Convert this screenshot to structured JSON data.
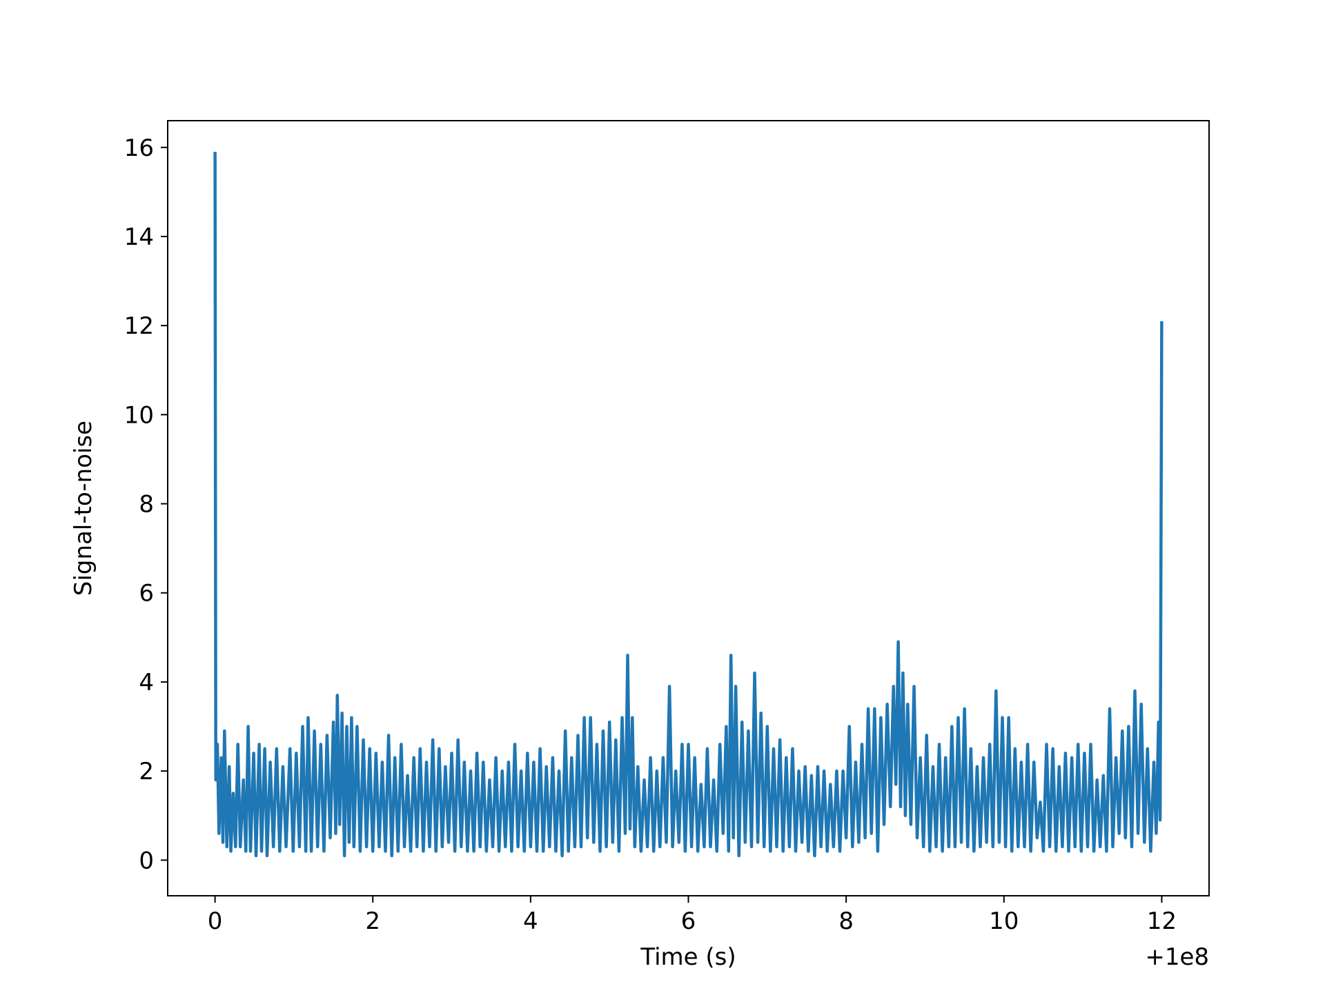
{
  "chart_data": {
    "type": "line",
    "title": "",
    "xlabel": "Time (s)",
    "ylabel": "Signal-to-noise",
    "x_offset_label": "+1e8",
    "xlim": [
      -0.6,
      12.6
    ],
    "ylim": [
      -0.8,
      16.6
    ],
    "x_ticks": [
      0,
      2,
      4,
      6,
      8,
      10,
      12
    ],
    "y_ticks": [
      0,
      2,
      4,
      6,
      8,
      10,
      12,
      14,
      16
    ],
    "x_tick_labels": [
      "0",
      "2",
      "4",
      "6",
      "8",
      "10",
      "12"
    ],
    "y_tick_labels": [
      "0",
      "2",
      "4",
      "6",
      "8",
      "10",
      "12",
      "14",
      "16"
    ],
    "grid": false,
    "legend": "none",
    "series": [
      {
        "color": "#1f77b4",
        "points": [
          [
            0.0,
            15.9
          ],
          [
            0.01,
            1.8
          ],
          [
            0.03,
            2.6
          ],
          [
            0.05,
            0.6
          ],
          [
            0.08,
            2.3
          ],
          [
            0.1,
            0.4
          ],
          [
            0.12,
            2.9
          ],
          [
            0.15,
            0.3
          ],
          [
            0.18,
            2.1
          ],
          [
            0.2,
            0.2
          ],
          [
            0.23,
            1.5
          ],
          [
            0.26,
            0.3
          ],
          [
            0.29,
            2.6
          ],
          [
            0.32,
            0.3
          ],
          [
            0.36,
            1.8
          ],
          [
            0.39,
            0.2
          ],
          [
            0.42,
            3.0
          ],
          [
            0.45,
            0.2
          ],
          [
            0.49,
            2.4
          ],
          [
            0.52,
            0.1
          ],
          [
            0.56,
            2.6
          ],
          [
            0.59,
            0.2
          ],
          [
            0.63,
            2.5
          ],
          [
            0.66,
            0.1
          ],
          [
            0.7,
            2.2
          ],
          [
            0.74,
            0.3
          ],
          [
            0.78,
            2.5
          ],
          [
            0.82,
            0.2
          ],
          [
            0.86,
            2.1
          ],
          [
            0.9,
            0.3
          ],
          [
            0.95,
            2.5
          ],
          [
            0.99,
            0.2
          ],
          [
            1.03,
            2.4
          ],
          [
            1.07,
            0.3
          ],
          [
            1.11,
            3.0
          ],
          [
            1.15,
            0.2
          ],
          [
            1.18,
            3.2
          ],
          [
            1.22,
            0.2
          ],
          [
            1.26,
            2.9
          ],
          [
            1.3,
            0.3
          ],
          [
            1.34,
            2.6
          ],
          [
            1.38,
            0.2
          ],
          [
            1.42,
            2.8
          ],
          [
            1.46,
            0.5
          ],
          [
            1.5,
            3.1
          ],
          [
            1.53,
            0.6
          ],
          [
            1.55,
            3.7
          ],
          [
            1.58,
            0.8
          ],
          [
            1.61,
            3.3
          ],
          [
            1.64,
            0.1
          ],
          [
            1.67,
            3.0
          ],
          [
            1.7,
            0.4
          ],
          [
            1.73,
            3.2
          ],
          [
            1.76,
            0.3
          ],
          [
            1.8,
            3.0
          ],
          [
            1.84,
            0.2
          ],
          [
            1.88,
            2.7
          ],
          [
            1.92,
            0.3
          ],
          [
            1.96,
            2.5
          ],
          [
            2.0,
            0.2
          ],
          [
            2.04,
            2.4
          ],
          [
            2.08,
            0.3
          ],
          [
            2.12,
            2.2
          ],
          [
            2.16,
            0.2
          ],
          [
            2.2,
            2.8
          ],
          [
            2.24,
            0.1
          ],
          [
            2.28,
            2.3
          ],
          [
            2.32,
            0.2
          ],
          [
            2.36,
            2.6
          ],
          [
            2.4,
            0.3
          ],
          [
            2.44,
            1.9
          ],
          [
            2.48,
            0.2
          ],
          [
            2.52,
            2.3
          ],
          [
            2.56,
            0.3
          ],
          [
            2.6,
            2.5
          ],
          [
            2.64,
            0.2
          ],
          [
            2.68,
            2.2
          ],
          [
            2.72,
            0.3
          ],
          [
            2.76,
            2.7
          ],
          [
            2.8,
            0.2
          ],
          [
            2.84,
            2.5
          ],
          [
            2.88,
            0.3
          ],
          [
            2.92,
            2.1
          ],
          [
            2.96,
            0.4
          ],
          [
            3.0,
            2.4
          ],
          [
            3.04,
            0.2
          ],
          [
            3.08,
            2.7
          ],
          [
            3.12,
            0.3
          ],
          [
            3.16,
            2.2
          ],
          [
            3.2,
            0.2
          ],
          [
            3.24,
            2.0
          ],
          [
            3.28,
            0.2
          ],
          [
            3.32,
            2.4
          ],
          [
            3.36,
            0.3
          ],
          [
            3.4,
            2.2
          ],
          [
            3.44,
            0.2
          ],
          [
            3.48,
            1.8
          ],
          [
            3.52,
            0.3
          ],
          [
            3.56,
            2.3
          ],
          [
            3.6,
            0.2
          ],
          [
            3.64,
            2.0
          ],
          [
            3.68,
            0.3
          ],
          [
            3.72,
            2.2
          ],
          [
            3.76,
            0.2
          ],
          [
            3.8,
            2.6
          ],
          [
            3.84,
            0.3
          ],
          [
            3.88,
            2.0
          ],
          [
            3.92,
            0.2
          ],
          [
            3.96,
            2.4
          ],
          [
            4.0,
            0.3
          ],
          [
            4.04,
            2.2
          ],
          [
            4.08,
            0.2
          ],
          [
            4.12,
            2.5
          ],
          [
            4.16,
            0.2
          ],
          [
            4.2,
            2.1
          ],
          [
            4.24,
            0.3
          ],
          [
            4.28,
            2.3
          ],
          [
            4.32,
            0.2
          ],
          [
            4.36,
            2.0
          ],
          [
            4.4,
            0.1
          ],
          [
            4.44,
            2.9
          ],
          [
            4.48,
            0.2
          ],
          [
            4.52,
            2.3
          ],
          [
            4.56,
            0.3
          ],
          [
            4.6,
            2.8
          ],
          [
            4.64,
            0.3
          ],
          [
            4.68,
            3.2
          ],
          [
            4.72,
            0.5
          ],
          [
            4.76,
            3.2
          ],
          [
            4.8,
            0.4
          ],
          [
            4.84,
            2.6
          ],
          [
            4.88,
            0.2
          ],
          [
            4.92,
            2.9
          ],
          [
            4.96,
            0.3
          ],
          [
            5.0,
            3.1
          ],
          [
            5.04,
            0.4
          ],
          [
            5.08,
            2.7
          ],
          [
            5.12,
            0.2
          ],
          [
            5.16,
            3.2
          ],
          [
            5.2,
            0.6
          ],
          [
            5.23,
            4.6
          ],
          [
            5.26,
            0.7
          ],
          [
            5.29,
            3.2
          ],
          [
            5.32,
            0.3
          ],
          [
            5.36,
            2.1
          ],
          [
            5.4,
            0.2
          ],
          [
            5.44,
            1.8
          ],
          [
            5.48,
            0.3
          ],
          [
            5.52,
            2.3
          ],
          [
            5.56,
            0.2
          ],
          [
            5.6,
            2.0
          ],
          [
            5.64,
            0.3
          ],
          [
            5.68,
            2.3
          ],
          [
            5.72,
            0.4
          ],
          [
            5.76,
            3.9
          ],
          [
            5.8,
            0.3
          ],
          [
            5.84,
            2.0
          ],
          [
            5.88,
            0.4
          ],
          [
            5.92,
            2.6
          ],
          [
            5.96,
            0.2
          ],
          [
            6.0,
            2.6
          ],
          [
            6.04,
            0.3
          ],
          [
            6.08,
            2.3
          ],
          [
            6.12,
            0.2
          ],
          [
            6.16,
            1.7
          ],
          [
            6.2,
            0.3
          ],
          [
            6.24,
            2.5
          ],
          [
            6.28,
            0.3
          ],
          [
            6.32,
            1.8
          ],
          [
            6.36,
            0.2
          ],
          [
            6.4,
            2.6
          ],
          [
            6.44,
            0.6
          ],
          [
            6.48,
            3.0
          ],
          [
            6.51,
            0.2
          ],
          [
            6.54,
            4.6
          ],
          [
            6.57,
            0.5
          ],
          [
            6.6,
            3.9
          ],
          [
            6.64,
            0.1
          ],
          [
            6.68,
            3.1
          ],
          [
            6.72,
            0.4
          ],
          [
            6.76,
            2.9
          ],
          [
            6.8,
            0.3
          ],
          [
            6.84,
            4.2
          ],
          [
            6.88,
            0.4
          ],
          [
            6.92,
            3.3
          ],
          [
            6.96,
            0.3
          ],
          [
            7.0,
            3.0
          ],
          [
            7.04,
            0.2
          ],
          [
            7.08,
            2.5
          ],
          [
            7.12,
            0.3
          ],
          [
            7.16,
            2.7
          ],
          [
            7.2,
            0.2
          ],
          [
            7.24,
            2.3
          ],
          [
            7.28,
            0.3
          ],
          [
            7.32,
            2.5
          ],
          [
            7.36,
            0.2
          ],
          [
            7.4,
            2.0
          ],
          [
            7.44,
            0.4
          ],
          [
            7.48,
            2.1
          ],
          [
            7.52,
            0.2
          ],
          [
            7.56,
            1.9
          ],
          [
            7.6,
            0.1
          ],
          [
            7.64,
            2.1
          ],
          [
            7.68,
            0.3
          ],
          [
            7.72,
            2.0
          ],
          [
            7.76,
            0.2
          ],
          [
            7.8,
            1.7
          ],
          [
            7.84,
            0.3
          ],
          [
            7.88,
            2.0
          ],
          [
            7.92,
            0.2
          ],
          [
            7.96,
            2.0
          ],
          [
            8.0,
            0.5
          ],
          [
            8.04,
            3.0
          ],
          [
            8.08,
            0.3
          ],
          [
            8.12,
            2.2
          ],
          [
            8.16,
            0.4
          ],
          [
            8.2,
            2.6
          ],
          [
            8.24,
            0.5
          ],
          [
            8.28,
            3.4
          ],
          [
            8.32,
            0.6
          ],
          [
            8.36,
            3.4
          ],
          [
            8.4,
            0.2
          ],
          [
            8.44,
            3.2
          ],
          [
            8.48,
            0.8
          ],
          [
            8.52,
            3.5
          ],
          [
            8.56,
            1.2
          ],
          [
            8.6,
            3.9
          ],
          [
            8.63,
            1.7
          ],
          [
            8.66,
            4.9
          ],
          [
            8.69,
            1.2
          ],
          [
            8.72,
            4.2
          ],
          [
            8.75,
            1.0
          ],
          [
            8.78,
            3.5
          ],
          [
            8.82,
            0.8
          ],
          [
            8.86,
            3.9
          ],
          [
            8.9,
            0.5
          ],
          [
            8.94,
            2.3
          ],
          [
            8.98,
            0.3
          ],
          [
            9.02,
            2.8
          ],
          [
            9.06,
            0.2
          ],
          [
            9.1,
            2.1
          ],
          [
            9.14,
            0.3
          ],
          [
            9.18,
            2.6
          ],
          [
            9.22,
            0.2
          ],
          [
            9.26,
            2.3
          ],
          [
            9.3,
            0.3
          ],
          [
            9.34,
            3.0
          ],
          [
            9.38,
            0.3
          ],
          [
            9.42,
            3.2
          ],
          [
            9.46,
            0.4
          ],
          [
            9.5,
            3.4
          ],
          [
            9.54,
            0.3
          ],
          [
            9.58,
            2.5
          ],
          [
            9.62,
            0.2
          ],
          [
            9.66,
            2.1
          ],
          [
            9.7,
            0.3
          ],
          [
            9.74,
            2.3
          ],
          [
            9.78,
            0.4
          ],
          [
            9.82,
            2.6
          ],
          [
            9.86,
            0.3
          ],
          [
            9.9,
            3.8
          ],
          [
            9.94,
            0.4
          ],
          [
            9.98,
            3.2
          ],
          [
            10.02,
            0.3
          ],
          [
            10.06,
            3.2
          ],
          [
            10.1,
            0.2
          ],
          [
            10.14,
            2.5
          ],
          [
            10.18,
            0.3
          ],
          [
            10.22,
            2.2
          ],
          [
            10.26,
            0.3
          ],
          [
            10.3,
            2.6
          ],
          [
            10.34,
            0.2
          ],
          [
            10.38,
            2.2
          ],
          [
            10.42,
            0.5
          ],
          [
            10.46,
            1.3
          ],
          [
            10.5,
            0.2
          ],
          [
            10.54,
            2.6
          ],
          [
            10.58,
            0.3
          ],
          [
            10.62,
            2.5
          ],
          [
            10.66,
            0.2
          ],
          [
            10.7,
            2.1
          ],
          [
            10.74,
            0.3
          ],
          [
            10.78,
            2.4
          ],
          [
            10.82,
            0.2
          ],
          [
            10.86,
            2.3
          ],
          [
            10.9,
            0.3
          ],
          [
            10.94,
            2.6
          ],
          [
            10.98,
            0.2
          ],
          [
            11.02,
            2.4
          ],
          [
            11.06,
            0.3
          ],
          [
            11.1,
            2.6
          ],
          [
            11.14,
            0.2
          ],
          [
            11.18,
            1.8
          ],
          [
            11.22,
            0.3
          ],
          [
            11.26,
            1.9
          ],
          [
            11.3,
            0.2
          ],
          [
            11.34,
            3.4
          ],
          [
            11.38,
            0.3
          ],
          [
            11.42,
            2.3
          ],
          [
            11.46,
            0.6
          ],
          [
            11.5,
            2.9
          ],
          [
            11.54,
            0.5
          ],
          [
            11.58,
            3.0
          ],
          [
            11.62,
            0.3
          ],
          [
            11.66,
            3.8
          ],
          [
            11.7,
            0.6
          ],
          [
            11.74,
            3.5
          ],
          [
            11.78,
            0.4
          ],
          [
            11.82,
            2.5
          ],
          [
            11.86,
            0.2
          ],
          [
            11.9,
            2.2
          ],
          [
            11.93,
            0.6
          ],
          [
            11.96,
            3.1
          ],
          [
            11.98,
            0.9
          ],
          [
            12.0,
            12.1
          ]
        ]
      }
    ]
  }
}
